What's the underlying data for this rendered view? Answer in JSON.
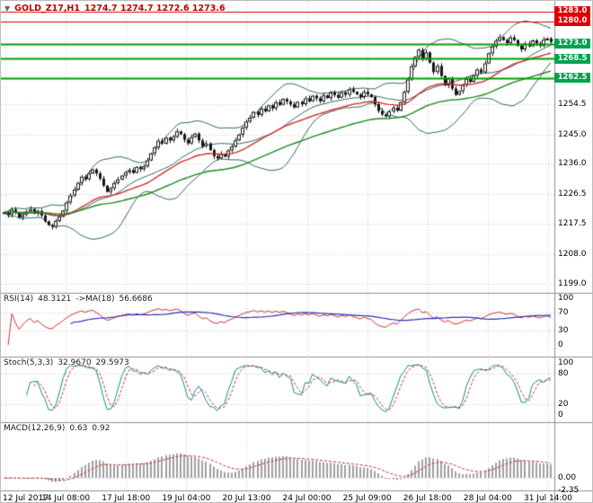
{
  "header": {
    "symbol": "GOLD_Z17,H1",
    "ohlc_values": "1274.7 1274.7 1272.6 1273.6"
  },
  "colors": {
    "grid": "#c8c8c8",
    "candle": "#151515",
    "bollinger": "#2e6b57",
    "ma_red": "#d62b2b",
    "ma_green": "#1d8a1d",
    "rsi_line": "#cc3030",
    "rsi_ma": "#3030b8",
    "stoch_main": "#0d8e8e",
    "stoch_signal": "#cc3030",
    "macd_hist": "#a0a0a0",
    "macd_signal": "#cc3030",
    "separator": "#8f8f8f"
  },
  "chart_data": {
    "type": "candlestick",
    "title": "GOLD_Z17,H1",
    "x_tick_labels": [
      "12 Jul 2017",
      "14 Jul 08:00",
      "17 Jul 18:00",
      "19 Jul 04:00",
      "20 Jul 13:00",
      "24 Jul 00:00",
      "25 Jul 09:00",
      "26 Jul 18:00",
      "28 Jul 04:00",
      "31 Jul 14:00"
    ],
    "main": {
      "ylim": [
        1196.1,
        1286.3
      ],
      "y_ticks": [
        1254.5,
        1245.0,
        1236.0,
        1226.5,
        1217.5,
        1208.0,
        1199.0
      ],
      "levels": [
        {
          "price": 1283.0,
          "label": "1283.0",
          "color": "#dd0000",
          "line_color": "#dd0000",
          "width": 1
        },
        {
          "price": 1280.0,
          "label": "1280.0",
          "color": "#dd0000",
          "line_color": "#dd0000",
          "width": 1
        },
        {
          "price": 1273.0,
          "label": "1273.0",
          "color": "#00a24d",
          "line_color": "#00a000",
          "width": 2
        },
        {
          "price": 1268.5,
          "label": "1268.5",
          "color": "#00a24d",
          "line_color": "#00a000",
          "width": 2
        },
        {
          "price": 1262.5,
          "label": "1262.5",
          "color": "#00a24d",
          "line_color": "#00a000",
          "width": 2
        }
      ],
      "closes": [
        1221.0,
        1220.2,
        1221.8,
        1220.8,
        1219.4,
        1220.3,
        1221.2,
        1222.0,
        1220.6,
        1221.4,
        1220.0,
        1218.2,
        1217.0,
        1216.5,
        1218.3,
        1219.6,
        1221.5,
        1224.0,
        1226.2,
        1228.0,
        1230.1,
        1232.0,
        1231.2,
        1233.0,
        1234.2,
        1233.0,
        1231.4,
        1229.2,
        1227.3,
        1228.4,
        1230.0,
        1231.1,
        1232.3,
        1233.4,
        1234.0,
        1233.2,
        1235.0,
        1234.3,
        1235.2,
        1237.0,
        1239.2,
        1241.0,
        1243.1,
        1242.2,
        1244.0,
        1243.2,
        1244.3,
        1246.0,
        1245.1,
        1243.4,
        1242.3,
        1244.2,
        1245.3,
        1243.2,
        1241.4,
        1242.3,
        1240.2,
        1238.3,
        1237.6,
        1239.0,
        1238.2,
        1240.1,
        1241.3,
        1243.2,
        1245.0,
        1247.1,
        1249.0,
        1250.2,
        1252.0,
        1251.1,
        1253.0,
        1252.2,
        1254.0,
        1253.1,
        1255.0,
        1254.2,
        1256.0,
        1255.2,
        1254.3,
        1253.4,
        1255.1,
        1254.4,
        1256.2,
        1255.3,
        1257.0,
        1256.2,
        1255.3,
        1257.1,
        1256.3,
        1258.0,
        1257.2,
        1256.4,
        1258.1,
        1257.3,
        1259.0,
        1258.2,
        1257.4,
        1256.6,
        1258.2,
        1257.4,
        1256.6,
        1254.4,
        1252.3,
        1251.2,
        1250.6,
        1252.2,
        1253.3,
        1252.4,
        1255.0,
        1258.2,
        1262.0,
        1266.1,
        1269.0,
        1271.2,
        1268.3,
        1270.4,
        1267.2,
        1264.3,
        1266.2,
        1263.1,
        1260.2,
        1262.3,
        1259.2,
        1257.3,
        1258.4,
        1260.3,
        1262.2,
        1261.3,
        1263.2,
        1265.1,
        1264.2,
        1267.0,
        1270.1,
        1272.2,
        1274.0,
        1275.1,
        1274.2,
        1273.3,
        1275.0,
        1274.2,
        1272.4,
        1271.3,
        1273.1,
        1272.3,
        1274.1,
        1273.2,
        1272.4,
        1274.3,
        1274.7,
        1273.6
      ],
      "overlays": {
        "bollinger_period": 20,
        "bollinger_dev": 2,
        "ma_red_period": 28,
        "ma_green_period": 60
      }
    },
    "rsi": {
      "label": "RSI(14)",
      "value": "48.3121",
      "ma_label": "->MA(18)",
      "ma_value": "56.6686",
      "period": 14,
      "ma_period": 18,
      "range": [
        0,
        100
      ],
      "ticks": [
        100,
        70,
        30,
        0
      ],
      "levels": [
        70,
        30
      ]
    },
    "stoch": {
      "label": "Stoch(5,3,3)",
      "values": [
        "32.9670",
        "29.5973"
      ],
      "k": 5,
      "slowing": 3,
      "d": 3,
      "range": [
        0,
        100
      ],
      "ticks": [
        100,
        80,
        20,
        0
      ],
      "levels": [
        80,
        20
      ]
    },
    "macd": {
      "label": "MACD(12,26,9)",
      "values": [
        "0.63",
        "0.92"
      ],
      "fast": 12,
      "slow": 26,
      "signal": 9,
      "ticks": [
        {
          "label": "0.00",
          "value": 0
        },
        {
          "label": "-2.35",
          "value": -2.35
        }
      ]
    }
  }
}
